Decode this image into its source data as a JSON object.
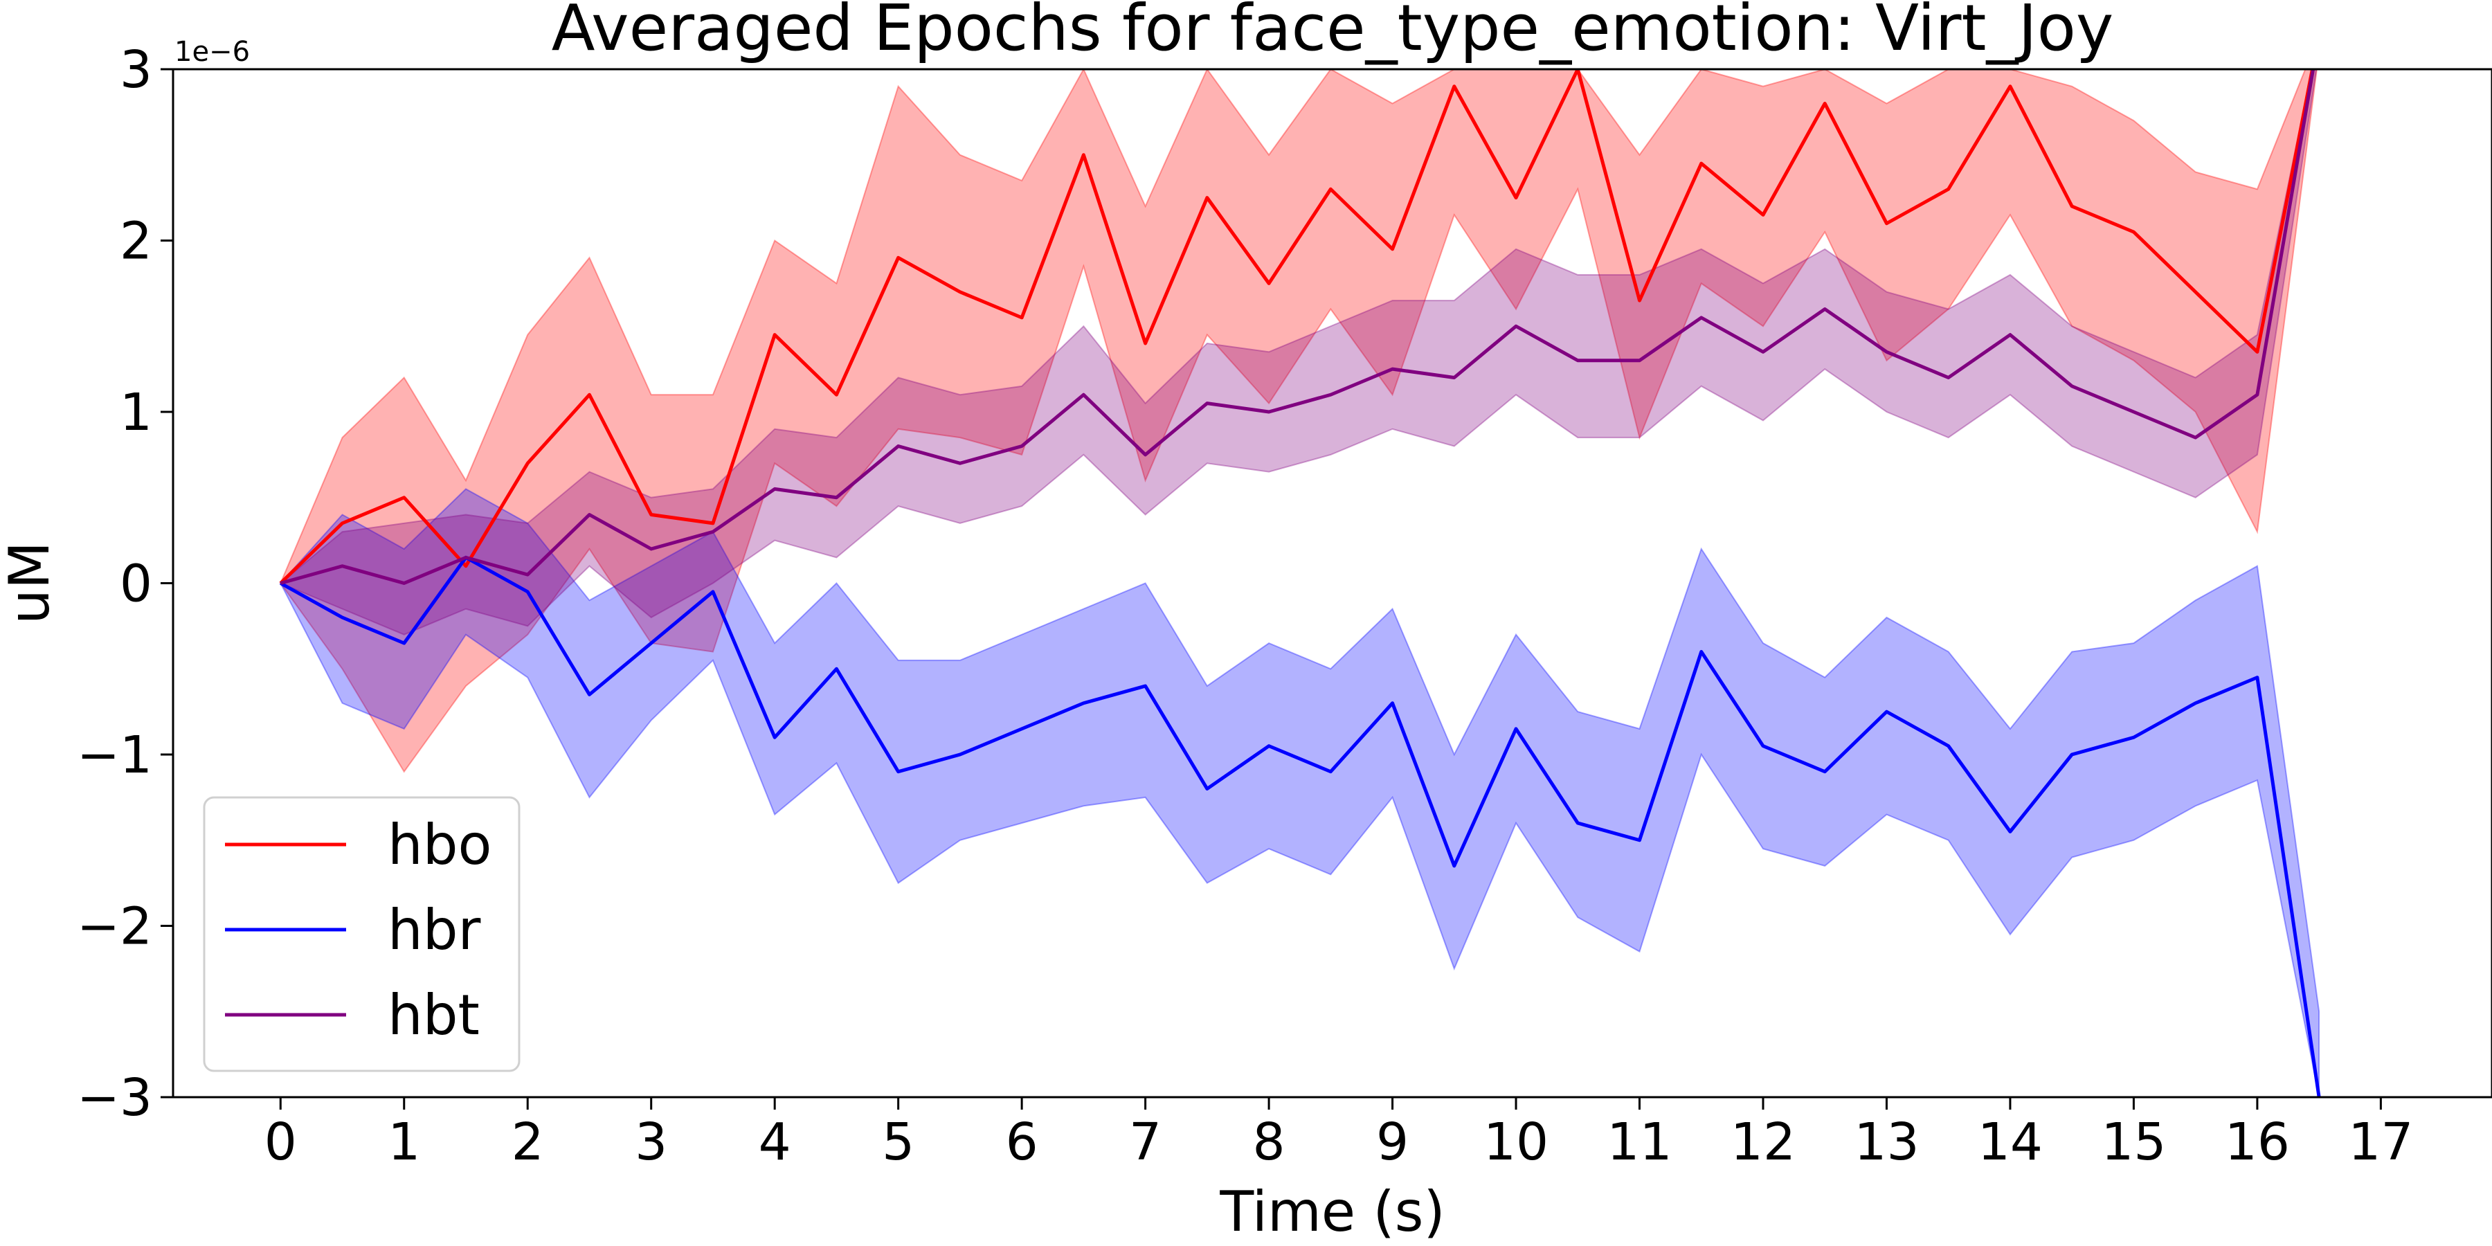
{
  "chart_data": {
    "type": "line",
    "title": "Averaged Epochs for face_type_emotion: Virt_Joy",
    "xlabel": "Time (s)",
    "ylabel": "uM",
    "y_offset_text": "1e−6",
    "xlim": [
      -0.87,
      17.9
    ],
    "ylim": [
      -3,
      3
    ],
    "xticks": [
      0,
      1,
      2,
      3,
      4,
      5,
      6,
      7,
      8,
      9,
      10,
      11,
      12,
      13,
      14,
      15,
      16,
      17
    ],
    "yticks": [
      -3,
      -2,
      -1,
      0,
      1,
      2,
      3
    ],
    "ytick_labels": [
      "−3",
      "−2",
      "−1",
      "0",
      "1",
      "2",
      "3"
    ],
    "grid": false,
    "legend_position": "lower-left",
    "x": [
      0,
      0.5,
      1,
      1.5,
      2,
      2.5,
      3,
      3.5,
      4,
      4.5,
      5,
      5.5,
      6,
      6.5,
      7,
      7.5,
      8,
      8.5,
      9,
      9.5,
      10,
      10.5,
      11,
      11.5,
      12,
      12.5,
      13,
      13.5,
      14,
      14.5,
      15,
      15.5,
      16,
      16.5
    ],
    "series": [
      {
        "name": "hbo",
        "color": "#ff0000",
        "values": [
          0,
          0.35,
          0.5,
          0.1,
          0.7,
          1.1,
          0.4,
          0.35,
          1.45,
          1.1,
          1.9,
          1.7,
          1.55,
          2.5,
          1.4,
          2.25,
          1.75,
          2.3,
          1.95,
          2.9,
          2.25,
          3.0,
          1.65,
          2.45,
          2.15,
          2.8,
          2.1,
          2.3,
          2.9,
          2.2,
          2.05,
          1.7,
          1.35,
          3.2
        ],
        "upper": [
          0,
          0.85,
          1.2,
          0.6,
          1.45,
          1.9,
          1.1,
          1.1,
          2.0,
          1.75,
          2.9,
          2.5,
          2.35,
          3.0,
          2.2,
          3.0,
          2.5,
          3.0,
          2.8,
          3.0,
          3.0,
          3.0,
          2.5,
          3.0,
          2.9,
          3.0,
          2.8,
          3.0,
          3.0,
          2.9,
          2.7,
          2.4,
          2.3,
          3.2
        ],
        "lower": [
          0,
          -0.5,
          -1.1,
          -0.6,
          -0.3,
          0.2,
          -0.35,
          -0.4,
          0.7,
          0.45,
          0.9,
          0.85,
          0.75,
          1.85,
          0.6,
          1.45,
          1.05,
          1.6,
          1.1,
          2.15,
          1.6,
          2.3,
          0.85,
          1.75,
          1.5,
          2.05,
          1.3,
          1.6,
          2.15,
          1.5,
          1.3,
          1.0,
          0.3,
          3.1
        ]
      },
      {
        "name": "hbr",
        "color": "#0000ff",
        "values": [
          0,
          -0.2,
          -0.35,
          0.15,
          -0.05,
          -0.65,
          -0.35,
          -0.05,
          -0.9,
          -0.5,
          -1.1,
          -1.0,
          -0.85,
          -0.7,
          -0.6,
          -1.2,
          -0.95,
          -1.1,
          -0.7,
          -1.65,
          -0.85,
          -1.4,
          -1.5,
          -0.4,
          -0.95,
          -1.1,
          -0.75,
          -0.95,
          -1.45,
          -1.0,
          -0.9,
          -0.7,
          -0.55,
          -3.0
        ],
        "upper": [
          0,
          0.4,
          0.2,
          0.55,
          0.35,
          -0.1,
          0.1,
          0.3,
          -0.35,
          0.0,
          -0.45,
          -0.45,
          -0.3,
          -0.15,
          0.0,
          -0.6,
          -0.35,
          -0.5,
          -0.15,
          -1.0,
          -0.3,
          -0.75,
          -0.85,
          0.2,
          -0.35,
          -0.55,
          -0.2,
          -0.4,
          -0.85,
          -0.4,
          -0.35,
          -0.1,
          0.1,
          -2.5
        ],
        "lower": [
          0,
          -0.7,
          -0.85,
          -0.3,
          -0.55,
          -1.25,
          -0.8,
          -0.45,
          -1.35,
          -1.05,
          -1.75,
          -1.5,
          -1.4,
          -1.3,
          -1.25,
          -1.75,
          -1.55,
          -1.7,
          -1.25,
          -2.25,
          -1.4,
          -1.95,
          -2.15,
          -1.0,
          -1.55,
          -1.65,
          -1.35,
          -1.5,
          -2.05,
          -1.6,
          -1.5,
          -1.3,
          -1.15,
          -3.0
        ]
      },
      {
        "name": "hbt",
        "color": "#800080",
        "values": [
          0,
          0.1,
          0.0,
          0.15,
          0.05,
          0.4,
          0.2,
          0.3,
          0.55,
          0.5,
          0.8,
          0.7,
          0.8,
          1.1,
          0.75,
          1.05,
          1.0,
          1.1,
          1.25,
          1.2,
          1.5,
          1.3,
          1.3,
          1.55,
          1.35,
          1.6,
          1.35,
          1.2,
          1.45,
          1.15,
          1.0,
          0.85,
          1.1,
          3.2
        ],
        "upper": [
          0,
          0.3,
          0.35,
          0.4,
          0.35,
          0.65,
          0.5,
          0.55,
          0.9,
          0.85,
          1.2,
          1.1,
          1.15,
          1.5,
          1.05,
          1.4,
          1.35,
          1.5,
          1.65,
          1.65,
          1.95,
          1.8,
          1.8,
          1.95,
          1.75,
          1.95,
          1.7,
          1.6,
          1.8,
          1.5,
          1.35,
          1.2,
          1.45,
          3.2
        ],
        "lower": [
          0,
          -0.15,
          -0.3,
          -0.15,
          -0.25,
          0.1,
          -0.2,
          0.0,
          0.25,
          0.15,
          0.45,
          0.35,
          0.45,
          0.75,
          0.4,
          0.7,
          0.65,
          0.75,
          0.9,
          0.8,
          1.1,
          0.85,
          0.85,
          1.15,
          0.95,
          1.25,
          1.0,
          0.85,
          1.1,
          0.8,
          0.65,
          0.5,
          0.75,
          3.1
        ]
      }
    ]
  }
}
